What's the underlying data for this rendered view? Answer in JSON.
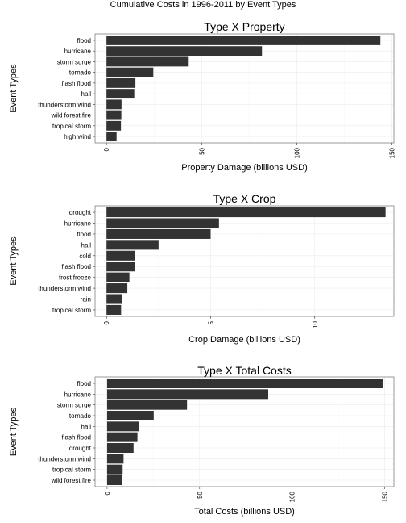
{
  "figure_title": "Cumulative Costs in 1996-2011 by Event Types",
  "colors": {
    "bar": "#333333",
    "panel_border": "#7f7f7f",
    "grid_major": "#ebebeb",
    "grid_minor": "#f5f5f5"
  },
  "chart_data": [
    {
      "type": "bar",
      "orientation": "horizontal",
      "title": "Type X Property",
      "xlabel": "Property Damage (billions USD)",
      "ylabel": "Event Types",
      "categories": [
        "flood",
        "hurricane",
        "storm surge",
        "tornado",
        "flash flood",
        "hail",
        "thunderstorm wind",
        "wild forest fire",
        "tropical storm",
        "high wind"
      ],
      "values": [
        143.9,
        81.7,
        43.2,
        24.6,
        15.2,
        14.6,
        7.9,
        7.8,
        7.6,
        5.3
      ],
      "xlim": [
        -6,
        151
      ],
      "xticks": [
        0,
        50,
        100,
        150
      ],
      "grid": true
    },
    {
      "type": "bar",
      "orientation": "horizontal",
      "title": "Type X Crop",
      "xlabel": "Crop Damage (billions USD)",
      "ylabel": "Event Types",
      "categories": [
        "drought",
        "hurricane",
        "flood",
        "hail",
        "cold",
        "flash flood",
        "frost freeze",
        "thunderstorm wind",
        "rain",
        "tropical storm"
      ],
      "values": [
        13.4,
        5.4,
        5.0,
        2.5,
        1.35,
        1.35,
        1.1,
        1.0,
        0.75,
        0.7
      ],
      "xlim": [
        -0.55,
        13.8
      ],
      "xticks": [
        0,
        5,
        10
      ],
      "grid": true
    },
    {
      "type": "bar",
      "orientation": "horizontal",
      "title": "Type X Total Costs",
      "xlabel": "Total Costs (billions USD)",
      "ylabel": "Event Types",
      "categories": [
        "flood",
        "hurricane",
        "storm surge",
        "tornado",
        "hail",
        "flash flood",
        "drought",
        "thunderstorm wind",
        "tropical storm",
        "wild forest fire"
      ],
      "values": [
        148.9,
        87.1,
        43.2,
        25.2,
        17.1,
        16.4,
        14.3,
        8.9,
        8.4,
        8.2
      ],
      "xlim": [
        -6.5,
        155
      ],
      "xticks": [
        0,
        50,
        100,
        150
      ],
      "grid": true
    }
  ]
}
